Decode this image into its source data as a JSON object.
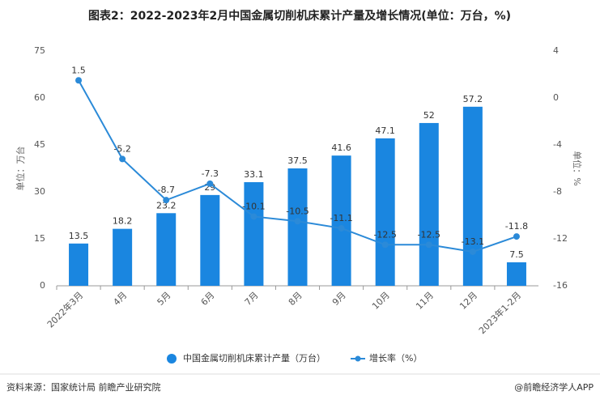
{
  "chart_data": {
    "type": "bar",
    "title": "图表2：2022-2023年2月中国金属切削机床累计产量及增长情况(单位：万台，%)",
    "y_label": "单位：万台",
    "y2_label": "单位：%",
    "categories": [
      "2022年3月",
      "4月",
      "5月",
      "6月",
      "7月",
      "8月",
      "9月",
      "10月",
      "11月",
      "12月",
      "2023年1-2月"
    ],
    "series": [
      {
        "name": "中国金属切削机床累计产量（万台）",
        "type": "bar",
        "color": "#1a86e0",
        "values": [
          13.5,
          18.2,
          23.2,
          29,
          33.1,
          37.5,
          41.6,
          47.1,
          52,
          57.2,
          7.5
        ]
      },
      {
        "name": "增长率（%）",
        "type": "line",
        "axis": "y2",
        "color": "#2b8ad8",
        "values": [
          1.5,
          -5.2,
          -8.7,
          -7.3,
          -10.1,
          -10.5,
          -11.1,
          -12.5,
          -12.5,
          -13.1,
          -11.8
        ]
      }
    ],
    "ylim": [
      0,
      75
    ],
    "yticks": [
      0,
      15,
      30,
      45,
      60,
      75
    ],
    "y2lim": [
      -16,
      4
    ],
    "y2ticks": [
      -16,
      -12,
      -8,
      -4,
      0,
      4
    ],
    "source": "资料来源：国家统计局 前瞻产业研究院",
    "credit": "@前瞻经济学人APP"
  }
}
